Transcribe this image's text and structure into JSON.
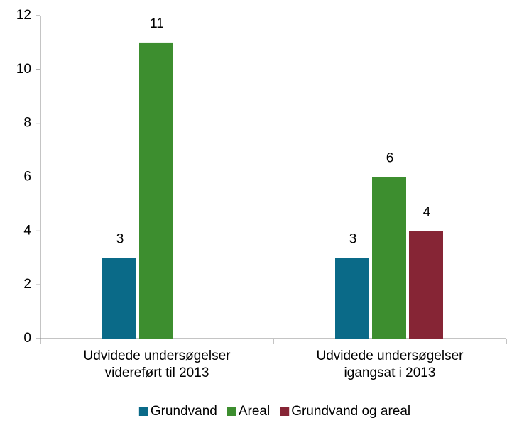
{
  "chart_data": {
    "type": "bar",
    "categories": [
      "Udvidede undersøgelser\nvidereført til 2013",
      "Udvidede undersøgelser\nigangsat i 2013"
    ],
    "series": [
      {
        "name": "Grundvand",
        "color": "#0a6a88",
        "values": [
          3,
          3
        ]
      },
      {
        "name": "Areal",
        "color": "#3d8e2f",
        "values": [
          11,
          6
        ]
      },
      {
        "name": "Grundvand og areal",
        "color": "#862535",
        "values": [
          null,
          4
        ]
      }
    ],
    "ylim": [
      0,
      12
    ],
    "yticks": [
      0,
      2,
      4,
      6,
      8,
      10,
      12
    ],
    "grid": false,
    "legend": "bottom"
  }
}
